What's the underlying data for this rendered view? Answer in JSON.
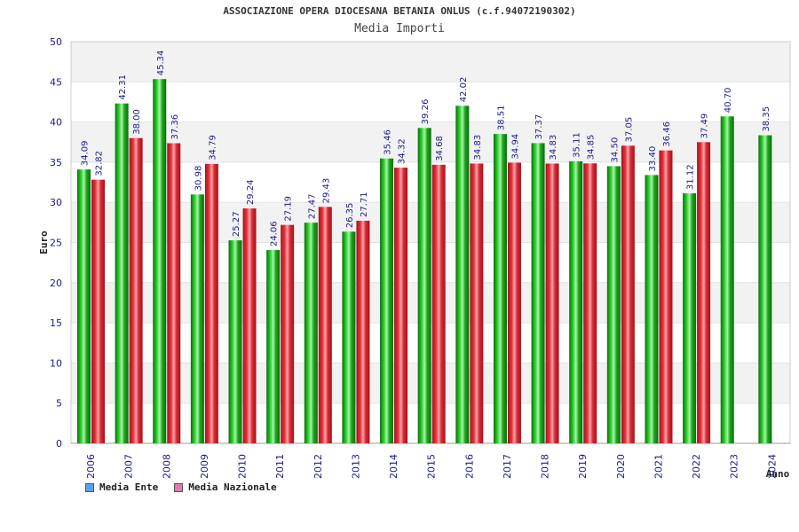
{
  "chart_data": {
    "type": "bar",
    "title": "ASSOCIAZIONE OPERA DIOCESANA BETANIA ONLUS (c.f.94072190302)",
    "subtitle": "Media Importi",
    "ylabel": "Euro",
    "xlabel": "Anno",
    "ylim": [
      0,
      50
    ],
    "yticks": [
      0,
      5,
      10,
      15,
      20,
      25,
      30,
      35,
      40,
      45,
      50
    ],
    "categories": [
      "2006",
      "2007",
      "2008",
      "2009",
      "2010",
      "2011",
      "2012",
      "2013",
      "2014",
      "2015",
      "2016",
      "2017",
      "2018",
      "2019",
      "2020",
      "2021",
      "2022",
      "2023",
      "2024"
    ],
    "series": [
      {
        "name": "Media Ente",
        "color": "#22b022",
        "legend_color": "#5aa0e8",
        "values": [
          34.09,
          42.31,
          45.34,
          30.98,
          25.27,
          24.06,
          27.47,
          26.35,
          35.46,
          39.26,
          42.02,
          38.51,
          37.37,
          35.11,
          34.5,
          33.4,
          31.12,
          40.7,
          38.35
        ],
        "labels": [
          "34.09",
          "42.31",
          "45.34",
          "30.98",
          "25.27",
          "24.06",
          "27.47",
          "26.35",
          "35.46",
          "39.26",
          "42.02",
          "38.51",
          "37.37",
          "35.11",
          "34.50",
          "33.40",
          "31.12",
          "40.70",
          "38.35"
        ]
      },
      {
        "name": "Media Nazionale",
        "color": "#e8323c",
        "legend_color": "#e07aa8",
        "values": [
          32.82,
          38.0,
          37.36,
          34.79,
          29.24,
          27.19,
          29.43,
          27.71,
          34.32,
          34.68,
          34.83,
          34.94,
          34.83,
          34.85,
          37.05,
          36.46,
          37.49,
          null,
          null
        ],
        "labels": [
          "32.82",
          "38.00",
          "37.36",
          "34.79",
          "29.24",
          "27.19",
          "29.43",
          "27.71",
          "34.32",
          "34.68",
          "34.83",
          "34.94",
          "34.83",
          "34.85",
          "37.05",
          "36.46",
          "37.49",
          null,
          null
        ]
      }
    ],
    "grid": true,
    "legend_position": "bottom-left"
  }
}
